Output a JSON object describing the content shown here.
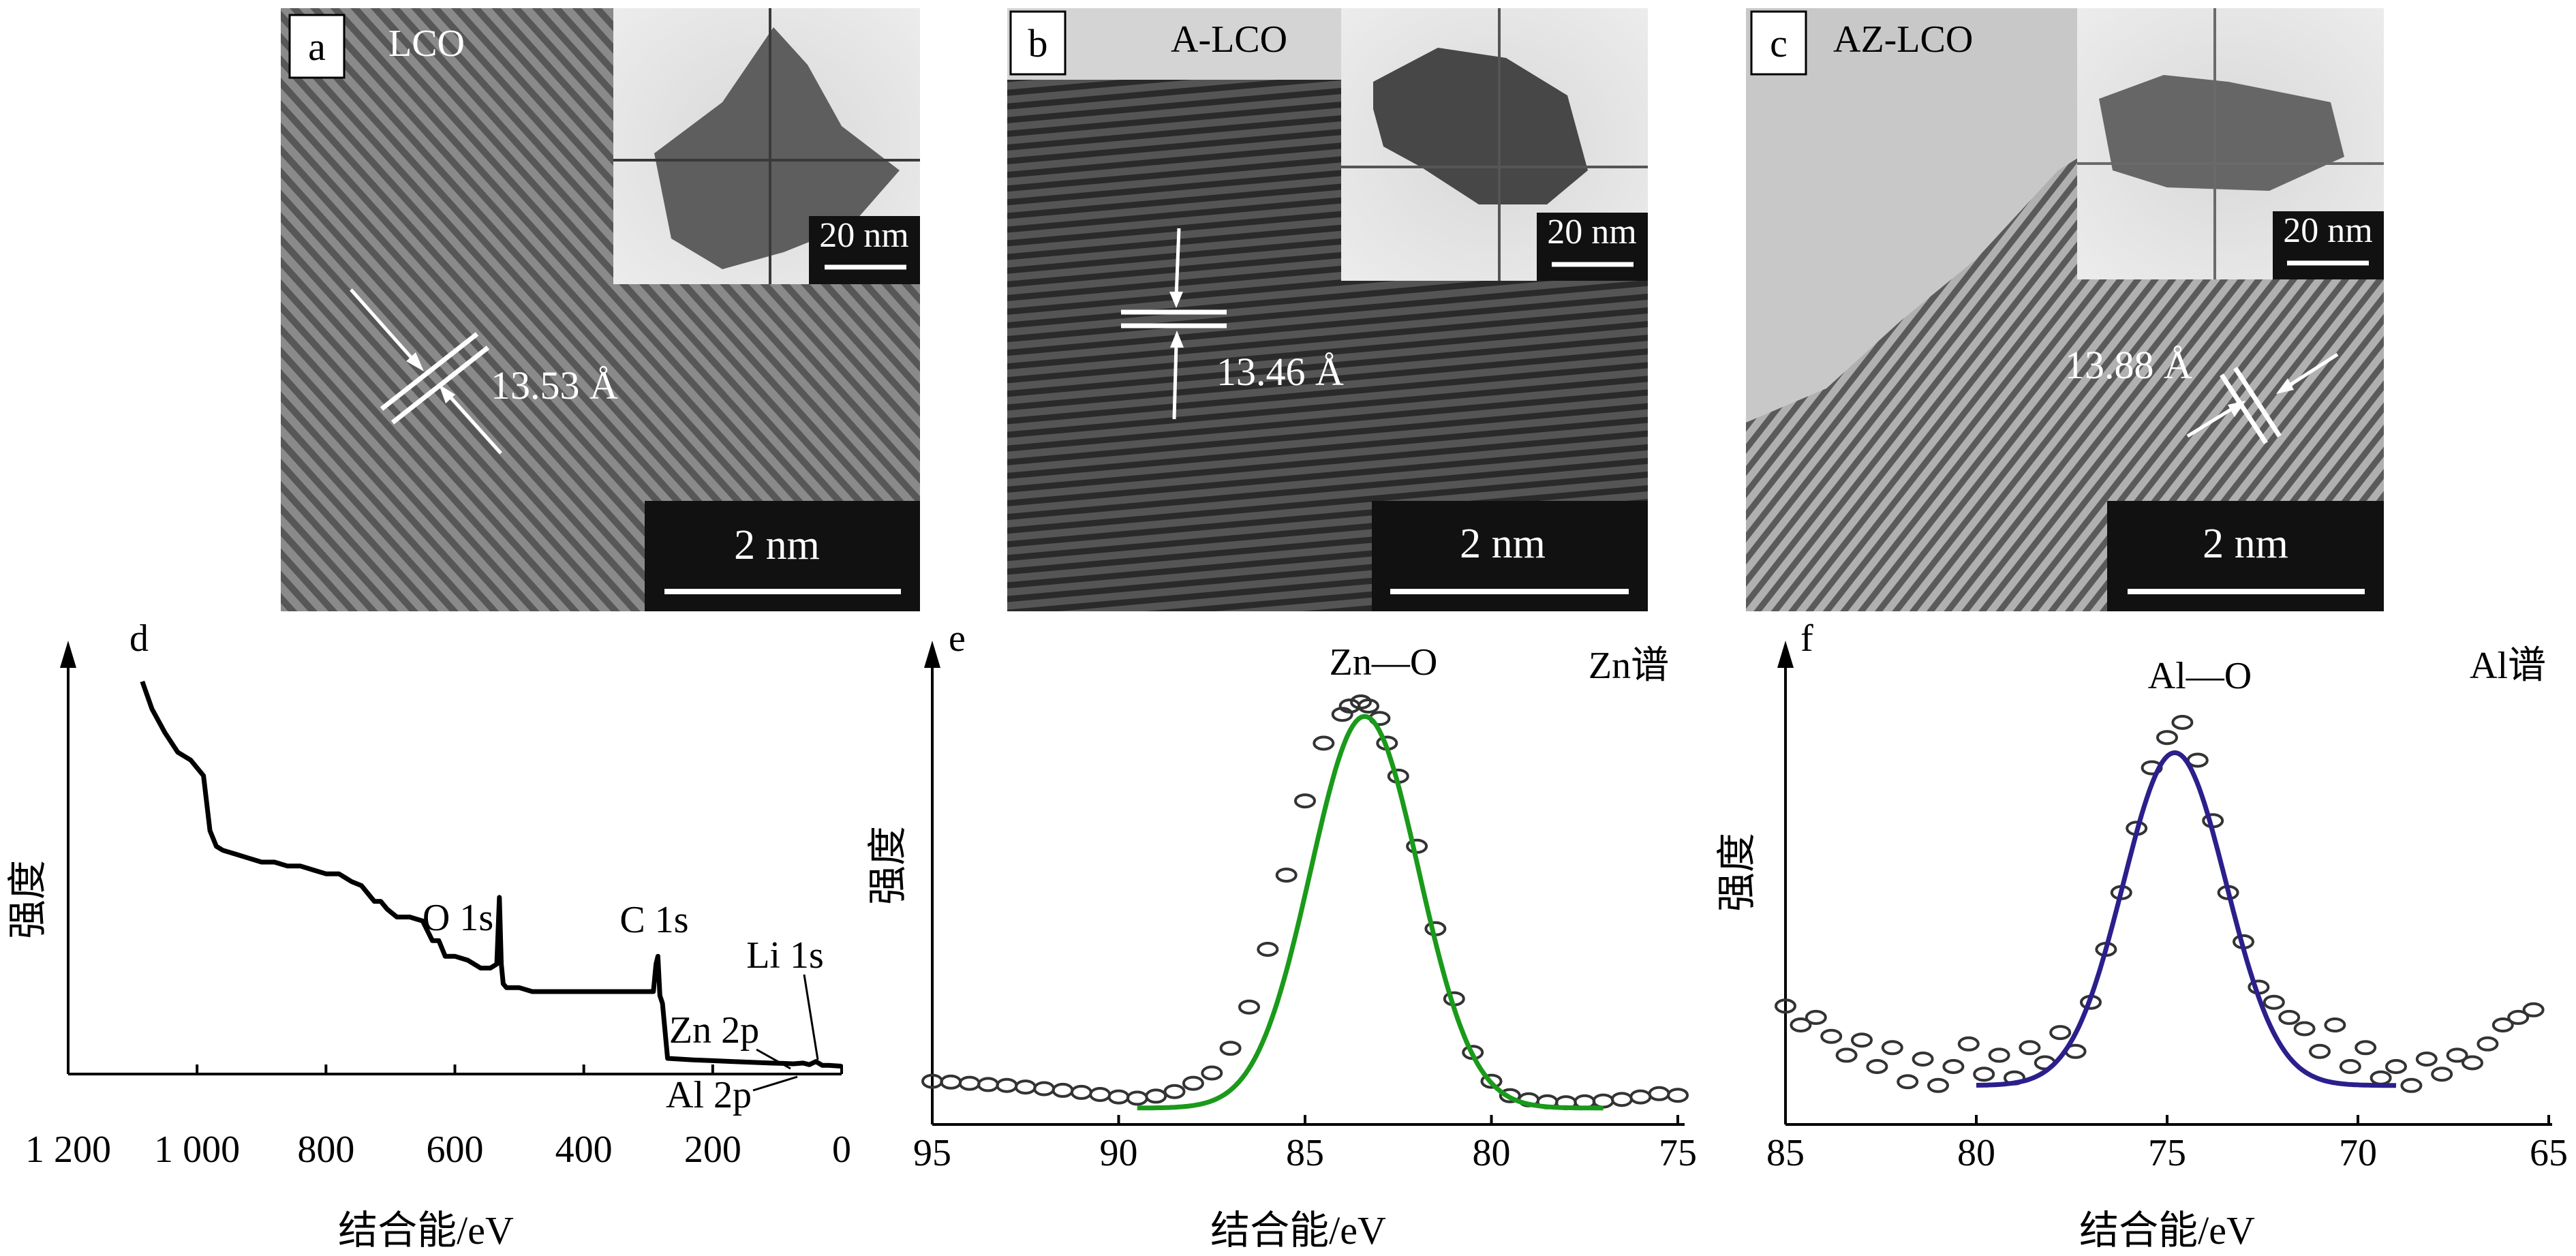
{
  "panels_top": [
    {
      "letter": "a",
      "sample": "LCO",
      "spacing": "13.53 Å",
      "scale_main": "2 nm",
      "scale_inset": "20 nm"
    },
    {
      "letter": "b",
      "sample": "A-LCO",
      "spacing": "13.46 Å",
      "scale_main": "2 nm",
      "scale_inset": "20 nm"
    },
    {
      "letter": "c",
      "sample": "AZ-LCO",
      "spacing": "13.88 Å",
      "scale_main": "2 nm",
      "scale_inset": "20 nm"
    }
  ],
  "colors": {
    "panel_e_fit": "#1a9a1a",
    "panel_f_fit": "#2b1f8c",
    "survey_line": "#000000",
    "tem_dark": "#4a4a4a",
    "tem_light": "#9a9a9a"
  },
  "chart_data": [
    {
      "panel": "d",
      "type": "line",
      "title": "",
      "xlabel": "结合能/eV",
      "ylabel": "强度",
      "xlim": [
        1200,
        0
      ],
      "x_reversed": true,
      "x_ticks": [
        1200,
        1000,
        800,
        600,
        400,
        200,
        0
      ],
      "x_tick_labels": [
        "1 200",
        "1 000",
        "800",
        "600",
        "400",
        "200",
        "0"
      ],
      "y_ticks_shown": false,
      "grid": false,
      "series": [
        {
          "x": [
            1085,
            1070,
            1050,
            1030,
            1010,
            990,
            980,
            970,
            960,
            940,
            920,
            900,
            880,
            860,
            840,
            820,
            800,
            780,
            760,
            745,
            735,
            725,
            715,
            705,
            690,
            670,
            650,
            635,
            625,
            615,
            600,
            580,
            560,
            545,
            535,
            531,
            528,
            525,
            520,
            500,
            480,
            460,
            440,
            420,
            400,
            380,
            360,
            340,
            320,
            300,
            292,
            288,
            285,
            282,
            278,
            270,
            250,
            230,
            200,
            170,
            140,
            110,
            90,
            75,
            60,
            50,
            40,
            30,
            20,
            10,
            0
          ],
          "y": [
            100,
            93,
            87,
            82,
            80,
            76,
            62,
            58,
            57,
            56,
            55,
            54,
            54,
            53,
            53,
            52,
            51,
            51,
            49,
            48,
            46,
            44,
            44,
            42,
            40,
            40,
            39,
            34,
            34,
            30,
            30,
            29,
            27,
            27,
            28,
            45,
            28,
            23,
            22,
            22,
            21,
            21,
            21,
            21,
            21,
            21,
            21,
            21,
            21,
            21,
            21,
            28,
            30,
            20,
            18,
            4,
            3.8,
            3.6,
            3.4,
            3.2,
            3.0,
            2.8,
            2.7,
            2.6,
            2.8,
            2.4,
            3.2,
            2.2,
            2.2,
            2.1,
            2.0
          ]
        }
      ],
      "annotations": [
        "O 1s",
        "C 1s",
        "Li 1s",
        "Zn 2p",
        "Al 2p"
      ]
    },
    {
      "panel": "e",
      "type": "scatter",
      "title": "Zn谱",
      "peak_label": "Zn—O",
      "xlabel": "结合能/eV",
      "ylabel": "强度",
      "xlim": [
        95,
        75
      ],
      "x_reversed": true,
      "x_ticks": [
        95,
        90,
        85,
        80,
        75
      ],
      "x_tick_labels": [
        "95",
        "90",
        "85",
        "80",
        "75"
      ],
      "y_ticks_shown": false,
      "grid": false,
      "series": [
        {
          "name": "",
          "kind": "points",
          "x": [
            95.0,
            94.5,
            94.0,
            93.5,
            93.0,
            92.5,
            92.0,
            91.5,
            91.0,
            90.5,
            90.0,
            89.5,
            89.0,
            88.5,
            88.0,
            87.5,
            87.0,
            86.5,
            86.0,
            85.5,
            85.0,
            84.5,
            84.0,
            83.8,
            83.5,
            83.3,
            83.0,
            82.8,
            82.5,
            82.0,
            81.5,
            81.0,
            80.5,
            80.0,
            79.5,
            79.0,
            78.5,
            78.0,
            77.5,
            77.0,
            76.5,
            76.0,
            75.5,
            75.0
          ],
          "y": [
            8.0,
            7.8,
            7.5,
            7.2,
            7.0,
            6.6,
            6.2,
            5.8,
            5.3,
            4.8,
            4.2,
            3.9,
            4.4,
            5.5,
            7.5,
            10,
            16,
            26,
            40,
            58,
            76,
            90,
            97,
            99,
            100,
            99,
            96,
            90,
            82,
            65,
            45,
            28,
            15,
            8.0,
            4.5,
            3.5,
            3.0,
            2.8,
            3.0,
            3.2,
            3.6,
            4.2,
            5.0,
            4.6
          ]
        },
        {
          "name": "",
          "kind": "fit",
          "mu": 83.4,
          "sigma": 1.45,
          "amplitude": 95,
          "baseline": 1.5,
          "x_range": [
            89.5,
            77.0
          ]
        }
      ]
    },
    {
      "panel": "f",
      "type": "scatter",
      "title": "Al谱",
      "peak_label": "Al—O",
      "xlabel": "结合能/eV",
      "ylabel": "强度",
      "xlim": [
        85,
        65
      ],
      "x_reversed": true,
      "x_ticks": [
        85,
        80,
        75,
        70,
        65
      ],
      "x_tick_labels": [
        "85",
        "80",
        "75",
        "70",
        "65"
      ],
      "y_ticks_shown": false,
      "grid": false,
      "series": [
        {
          "name": "",
          "kind": "points",
          "x": [
            85.0,
            84.6,
            84.2,
            83.8,
            83.4,
            83.0,
            82.6,
            82.2,
            81.8,
            81.4,
            81.0,
            80.6,
            80.2,
            79.8,
            79.4,
            79.0,
            78.6,
            78.2,
            77.8,
            77.4,
            77.0,
            76.6,
            76.2,
            75.8,
            75.4,
            75.0,
            74.6,
            74.2,
            73.8,
            73.4,
            73.0,
            72.6,
            72.2,
            71.8,
            71.4,
            71.0,
            70.6,
            70.2,
            69.8,
            69.4,
            69.0,
            68.6,
            68.2,
            67.8,
            67.4,
            67.0,
            66.6,
            66.2,
            65.8,
            65.4
          ],
          "y": [
            25,
            20,
            22,
            17,
            12,
            16,
            9,
            14,
            5,
            11,
            4,
            9,
            15,
            7,
            12,
            6,
            14,
            10,
            18,
            13,
            26,
            40,
            55,
            72,
            88,
            96,
            100,
            90,
            74,
            55,
            42,
            30,
            26,
            22,
            19,
            13,
            20,
            9,
            14,
            6,
            9,
            4,
            11,
            7,
            12,
            10,
            15,
            20,
            22,
            24
          ]
        },
        {
          "name": "",
          "kind": "fit",
          "mu": 74.8,
          "sigma": 1.35,
          "amplitude": 88,
          "baseline": 4,
          "x_range": [
            80.0,
            69.0
          ]
        }
      ]
    }
  ]
}
